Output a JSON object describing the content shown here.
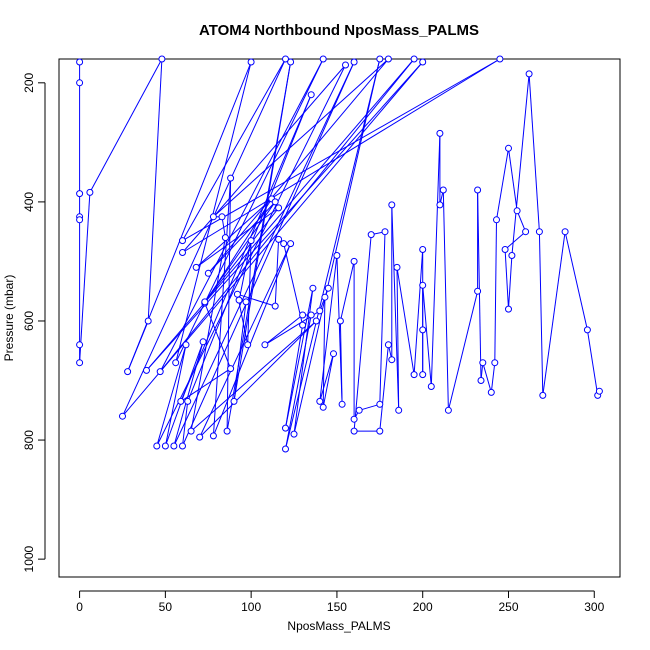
{
  "chart_data": {
    "type": "line",
    "title": "ATOM4 Northbound NposMass_PALMS",
    "xlabel": "NposMass_PALMS",
    "ylabel": "Pressure (mbar)",
    "xlim": [
      -12,
      315
    ],
    "ylim": [
      1030,
      160
    ],
    "y_reversed": true,
    "xticks": [
      0,
      50,
      100,
      150,
      200,
      250,
      300
    ],
    "yticks": [
      200,
      400,
      600,
      800,
      1000
    ],
    "line_color": "#0000ff",
    "marker": "open-circle",
    "series": [
      {
        "points": [
          [
            0,
            165
          ],
          [
            0,
            200
          ],
          [
            0,
            386
          ],
          [
            0,
            425
          ],
          [
            0,
            430
          ],
          [
            0,
            640
          ],
          [
            0,
            670
          ],
          [
            6,
            384
          ],
          [
            48,
            160
          ],
          [
            40,
            600
          ],
          [
            28,
            685
          ],
          [
            100,
            165
          ],
          [
            56,
            670
          ],
          [
            142,
            160
          ],
          [
            47,
            685
          ],
          [
            195,
            160
          ],
          [
            39,
            683
          ],
          [
            200,
            165
          ],
          [
            25,
            760
          ],
          [
            120,
            160
          ],
          [
            60,
            465
          ],
          [
            245,
            160
          ],
          [
            60,
            485
          ],
          [
            155,
            170
          ],
          [
            45,
            810
          ],
          [
            62,
            640
          ],
          [
            50,
            810
          ],
          [
            72,
            635
          ],
          [
            55,
            810
          ],
          [
            160,
            165
          ],
          [
            60,
            810
          ],
          [
            63,
            735
          ],
          [
            135,
            220
          ],
          [
            59,
            735
          ],
          [
            88,
            680
          ],
          [
            73,
            570
          ],
          [
            112,
            395
          ],
          [
            68,
            510
          ],
          [
            116,
            410
          ],
          [
            73,
            568
          ],
          [
            114,
            400
          ],
          [
            75,
            520
          ],
          [
            180,
            160
          ],
          [
            78,
            425
          ],
          [
            83,
            425
          ],
          [
            85,
            460
          ],
          [
            65,
            785
          ],
          [
            138,
            600
          ],
          [
            70,
            795
          ],
          [
            123,
            470
          ],
          [
            78,
            793
          ],
          [
            88,
            360
          ],
          [
            86,
            785
          ],
          [
            123,
            165
          ],
          [
            90,
            735
          ],
          [
            97,
            568
          ],
          [
            93,
            565
          ],
          [
            100,
            465
          ],
          [
            98,
            640
          ],
          [
            92,
            555
          ],
          [
            114,
            575
          ],
          [
            116,
            463
          ],
          [
            119,
            470
          ],
          [
            130,
            607
          ],
          [
            120,
            780
          ],
          [
            136,
            545
          ],
          [
            125,
            790
          ],
          [
            175,
            160
          ],
          [
            120,
            815
          ],
          [
            135,
            590
          ],
          [
            130,
            590
          ],
          [
            108,
            640
          ],
          [
            140,
            583
          ],
          [
            145,
            545
          ],
          [
            143,
            560
          ],
          [
            142,
            745
          ],
          [
            148,
            655
          ],
          [
            140,
            735
          ],
          [
            150,
            490
          ],
          [
            153,
            740
          ],
          [
            152,
            600
          ],
          [
            160,
            500
          ],
          [
            160,
            765
          ],
          [
            163,
            750
          ],
          [
            175,
            740
          ],
          [
            178,
            450
          ],
          [
            170,
            455
          ],
          [
            160,
            785
          ],
          [
            175,
            785
          ],
          [
            180,
            640
          ],
          [
            182,
            665
          ],
          [
            182,
            405
          ],
          [
            186,
            750
          ],
          [
            185,
            510
          ],
          [
            195,
            690
          ],
          [
            200,
            480
          ],
          [
            200,
            690
          ],
          [
            200,
            615
          ],
          [
            200,
            540
          ],
          [
            205,
            710
          ],
          [
            210,
            285
          ],
          [
            210,
            405
          ],
          [
            212,
            380
          ],
          [
            215,
            750
          ],
          [
            232,
            550
          ],
          [
            232,
            380
          ],
          [
            234,
            700
          ],
          [
            235,
            670
          ],
          [
            240,
            720
          ],
          [
            242,
            670
          ],
          [
            243,
            430
          ],
          [
            250,
            310
          ],
          [
            255,
            415
          ],
          [
            260,
            450
          ],
          [
            248,
            480
          ],
          [
            250,
            580
          ],
          [
            252,
            490
          ],
          [
            262,
            185
          ],
          [
            268,
            450
          ],
          [
            270,
            725
          ],
          [
            283,
            450
          ],
          [
            296,
            615
          ],
          [
            302,
            725
          ],
          [
            303,
            718
          ]
        ]
      }
    ]
  }
}
